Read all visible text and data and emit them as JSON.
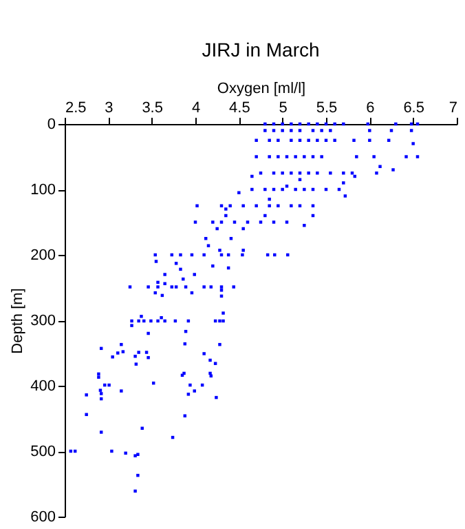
{
  "chart_data": {
    "type": "scatter",
    "title": "JIRJ in March",
    "xlabel": "Oxygen [ml/l]",
    "ylabel": "Depth [m]",
    "xlim": [
      2.5,
      7
    ],
    "xticks": [
      2.5,
      3,
      3.5,
      4,
      4.5,
      5,
      5.5,
      6,
      6.5,
      7
    ],
    "ylim": [
      600,
      0
    ],
    "yticks": [
      0,
      100,
      200,
      300,
      400,
      500,
      600
    ],
    "grid": false,
    "marker": "square",
    "series": [
      {
        "color": "#0000ff",
        "x": [
          4.8,
          4.9,
          5.0,
          5.1,
          5.2,
          5.3,
          5.4,
          5.5,
          5.6,
          5.7,
          5.98,
          6.3,
          6.48,
          6.55,
          4.8,
          4.9,
          5.0,
          5.1,
          5.2,
          5.35,
          5.45,
          5.55,
          6.0,
          6.25,
          6.48,
          4.7,
          4.85,
          4.95,
          5.1,
          5.2,
          5.3,
          5.4,
          5.5,
          5.6,
          5.82,
          6.0,
          6.22,
          6.5,
          4.7,
          4.85,
          4.95,
          5.05,
          5.15,
          5.25,
          5.35,
          5.45,
          5.85,
          6.05,
          6.42,
          6.55,
          6.12,
          6.27,
          6.08,
          4.75,
          4.9,
          5.0,
          5.1,
          5.2,
          5.3,
          5.4,
          5.55,
          5.7,
          5.8,
          4.65,
          5.83,
          5.2,
          5.7,
          4.65,
          4.8,
          4.9,
          5.0,
          5.15,
          5.25,
          5.35,
          5.5,
          5.65,
          5.72,
          5.05,
          4.5,
          4.02,
          4.3,
          4.4,
          4.55,
          4.7,
          4.85,
          4.95,
          5.1,
          5.2,
          5.35,
          4.85,
          4.35,
          4.8,
          5.35,
          4.35,
          4.0,
          4.2,
          4.3,
          4.45,
          4.6,
          4.75,
          4.9,
          5.05,
          5.25,
          4.25,
          4.55,
          4.12,
          4.15,
          4.28,
          4.41,
          4.55,
          3.54,
          3.73,
          3.83,
          3.96,
          4.1,
          4.3,
          4.38,
          4.54,
          4.83,
          4.91,
          5.06,
          3.55,
          3.78,
          3.83,
          4.2,
          4.38,
          3.86,
          3.99,
          3.65,
          3.25,
          3.46,
          3.57,
          3.73,
          3.78,
          3.89,
          4.1,
          4.18,
          4.3,
          4.44,
          3.57,
          3.65,
          3.96,
          3.54,
          4.3,
          4.3,
          3.62,
          3.27,
          3.35,
          3.41,
          3.49,
          3.57,
          3.65,
          3.77,
          3.92,
          4.23,
          4.28,
          4.32,
          3.61,
          3.27,
          3.38,
          3.46,
          3.89,
          4.32,
          3.88,
          4.28,
          3.15,
          2.92,
          3.11,
          3.17,
          3.05,
          3.35,
          3.44,
          3.31,
          3.46,
          3.32,
          4.1,
          4.17,
          4.23,
          3.87,
          4.17,
          2.89,
          2.89,
          2.75,
          2.75,
          2.91,
          2.92,
          2.92,
          2.96,
          3.01,
          3.15,
          3.52,
          3.85,
          3.94,
          3.92,
          3.99,
          4.08,
          4.18,
          4.24,
          3.88,
          3.39,
          2.92,
          3.74,
          2.57,
          2.62,
          3.04,
          3.2,
          3.31,
          3.34,
          3.34,
          3.31
        ],
        "values": [
          0,
          0,
          0,
          0,
          0,
          0,
          0,
          0,
          0,
          0,
          0,
          0,
          0,
          0,
          10,
          10,
          10,
          10,
          10,
          10,
          10,
          10,
          10,
          10,
          10,
          25,
          25,
          25,
          25,
          25,
          25,
          25,
          25,
          25,
          25,
          25,
          25,
          30,
          50,
          50,
          50,
          50,
          50,
          50,
          50,
          50,
          50,
          50,
          50,
          50,
          65,
          70,
          75,
          75,
          75,
          75,
          75,
          75,
          75,
          75,
          75,
          75,
          75,
          80,
          80,
          85,
          90,
          100,
          100,
          100,
          100,
          100,
          100,
          100,
          100,
          100,
          110,
          95,
          105,
          125,
          125,
          125,
          125,
          125,
          125,
          125,
          125,
          125,
          125,
          115,
          130,
          140,
          140,
          140,
          150,
          150,
          150,
          150,
          150,
          150,
          150,
          150,
          155,
          160,
          160,
          175,
          186,
          193,
          175,
          193,
          200,
          200,
          200,
          200,
          200,
          200,
          200,
          200,
          200,
          200,
          200,
          210,
          213,
          222,
          217,
          220,
          237,
          230,
          230,
          249,
          249,
          249,
          249,
          249,
          249,
          249,
          249,
          249,
          249,
          242,
          244,
          258,
          258,
          254,
          263,
          262,
          301,
          301,
          301,
          301,
          301,
          301,
          301,
          301,
          301,
          301,
          301,
          296,
          308,
          294,
          320,
          317,
          289,
          336,
          337,
          337,
          343,
          350,
          348,
          356,
          349,
          349,
          355,
          357,
          367,
          351,
          361,
          366,
          381,
          381,
          382,
          387,
          414,
          444,
          407,
          412,
          420,
          399,
          399,
          408,
          396,
          384,
          399,
          413,
          408,
          399,
          385,
          418,
          446,
          465,
          471,
          479,
          500,
          500,
          500,
          503,
          507,
          505,
          537,
          561
        ]
      }
    ]
  }
}
